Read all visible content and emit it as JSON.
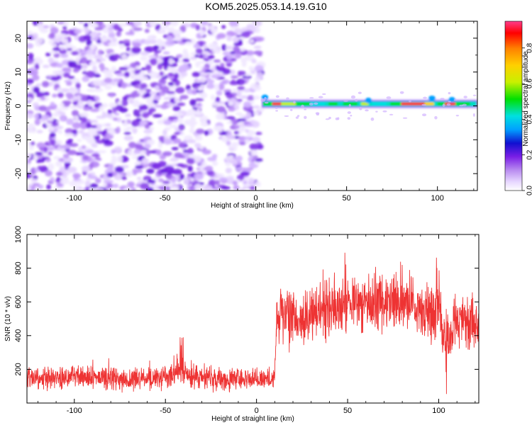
{
  "title": "KOM5.2025.053.14.19.G10",
  "chart_data": [
    {
      "type": "heatmap",
      "title": "KOM5.2025.053.14.19.G10",
      "xlabel": "Height of straight line (km)",
      "ylabel": "Frequency (Hz)",
      "xlim": [
        -126,
        122
      ],
      "ylim": [
        -25,
        25
      ],
      "xticks": [
        -100,
        -50,
        0,
        50,
        100
      ],
      "yticks": [
        -20,
        -10,
        0,
        10,
        20
      ],
      "grid": false,
      "colorbar": {
        "label": "Normalized spectral amplitude",
        "range": [
          0,
          0.95
        ],
        "ticks": [
          0.0,
          0.2,
          0.4,
          0.6,
          0.8
        ],
        "tick_labels": [
          "0.0",
          "0.2",
          "0.4",
          "0.6",
          "0.8"
        ],
        "colormap": [
          "#ffffff",
          "#e8d8ff",
          "#b98cf0",
          "#7a1ee6",
          "#1010d0",
          "#00a0ff",
          "#00e0e0",
          "#00e000",
          "#c8f000",
          "#ffd000",
          "#ff8000",
          "#ff0000",
          "#ff3c8c"
        ]
      },
      "regions": [
        {
          "name": "noise",
          "x_range": [
            -126,
            3
          ],
          "y_range": [
            -25,
            25
          ],
          "amplitude_range": [
            0.0,
            0.35
          ]
        },
        {
          "name": "signal band",
          "x_range": [
            3,
            122
          ],
          "y_range": [
            -0.5,
            2
          ],
          "amplitude_range": [
            0.3,
            0.95
          ]
        }
      ]
    },
    {
      "type": "line",
      "xlabel": "Height of straight line (km)",
      "ylabel": "SNR (10 * v/v)",
      "xlim": [
        -126,
        122
      ],
      "ylim": [
        0,
        1000
      ],
      "xticks": [
        -100,
        -50,
        0,
        50,
        100
      ],
      "yticks": [
        200,
        400,
        600,
        800,
        1000
      ],
      "grid": false,
      "series": [
        {
          "color": "#ee3333",
          "x": [
            -126,
            -110,
            -90,
            -70,
            -50,
            -42,
            -38,
            -20,
            0,
            10,
            11,
            20,
            40,
            60,
            80,
            95,
            100,
            104,
            110,
            122
          ],
          "y": [
            140,
            150,
            150,
            140,
            150,
            190,
            150,
            140,
            140,
            150,
            480,
            500,
            560,
            600,
            590,
            530,
            480,
            400,
            500,
            460
          ]
        }
      ]
    }
  ]
}
